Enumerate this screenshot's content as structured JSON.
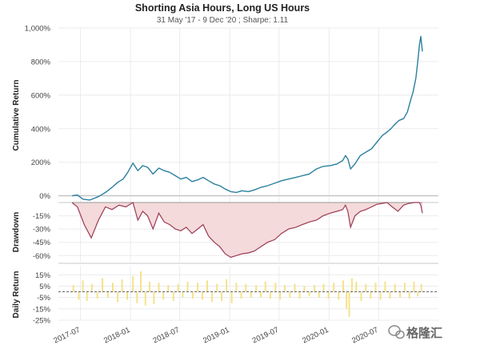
{
  "chart_data": [
    {
      "type": "line",
      "panel": "cumulative",
      "title": "Shorting Asia Hours, Long US Hours",
      "subtitle": "31 May '17 -  9 Dec '20 ;  Sharpe: 1.11",
      "ylabel": "Cumulative Return",
      "ylim": [
        -40,
        1000
      ],
      "yticks": [
        "0%",
        "200%",
        "400%",
        "600%",
        "800%",
        "1,000%"
      ],
      "ytick_values": [
        0,
        200,
        400,
        600,
        800,
        1000
      ],
      "x_start": "2017-05-31",
      "x_end": "2020-12-09",
      "series": [
        {
          "color": "#2a7f9e",
          "x": [
            "2017-05-31",
            "2017-06-20",
            "2017-07-10",
            "2017-08-05",
            "2017-09-05",
            "2017-10-01",
            "2017-10-25",
            "2017-11-15",
            "2017-12-05",
            "2017-12-22",
            "2018-01-10",
            "2018-01-28",
            "2018-02-15",
            "2018-03-05",
            "2018-03-25",
            "2018-04-15",
            "2018-05-05",
            "2018-05-25",
            "2018-06-15",
            "2018-07-05",
            "2018-07-25",
            "2018-08-15",
            "2018-09-05",
            "2018-09-25",
            "2018-10-15",
            "2018-11-05",
            "2018-11-25",
            "2018-12-15",
            "2019-01-05",
            "2019-01-25",
            "2019-02-15",
            "2019-03-10",
            "2019-04-01",
            "2019-04-25",
            "2019-05-20",
            "2019-06-15",
            "2019-07-10",
            "2019-08-05",
            "2019-09-01",
            "2019-09-25",
            "2019-10-20",
            "2019-11-15",
            "2019-12-10",
            "2020-01-05",
            "2020-01-30",
            "2020-02-20",
            "2020-03-01",
            "2020-03-10",
            "2020-03-20",
            "2020-04-05",
            "2020-04-25",
            "2020-05-15",
            "2020-06-05",
            "2020-06-25",
            "2020-07-15",
            "2020-08-01",
            "2020-08-15",
            "2020-09-01",
            "2020-09-15",
            "2020-10-01",
            "2020-10-15",
            "2020-10-25",
            "2020-11-05",
            "2020-11-15",
            "2020-11-22",
            "2020-11-28",
            "2020-12-03",
            "2020-12-09"
          ],
          "values": [
            0,
            5,
            -20,
            -25,
            -5,
            20,
            50,
            80,
            100,
            140,
            195,
            150,
            180,
            170,
            130,
            165,
            150,
            140,
            120,
            100,
            110,
            85,
            95,
            110,
            90,
            70,
            60,
            40,
            25,
            20,
            30,
            25,
            35,
            50,
            60,
            75,
            90,
            100,
            110,
            120,
            130,
            160,
            175,
            180,
            190,
            210,
            240,
            220,
            160,
            190,
            240,
            260,
            280,
            320,
            360,
            380,
            400,
            430,
            450,
            460,
            500,
            560,
            620,
            700,
            800,
            900,
            950,
            860
          ]
        }
      ]
    },
    {
      "type": "area",
      "panel": "drawdown",
      "ylabel": "Drawdown",
      "ylim": [
        -67,
        0
      ],
      "yticks": [
        "-15%",
        "-30%",
        "-45%",
        "-60%"
      ],
      "ytick_values": [
        -15,
        -30,
        -45,
        -60
      ],
      "series": [
        {
          "line_color": "#9b3a55",
          "fill_color": "#f4dada",
          "x": [
            "2017-05-31",
            "2017-06-20",
            "2017-07-15",
            "2017-08-10",
            "2017-09-05",
            "2017-10-01",
            "2017-10-25",
            "2017-11-20",
            "2017-12-15",
            "2018-01-10",
            "2018-01-28",
            "2018-02-15",
            "2018-03-05",
            "2018-03-25",
            "2018-04-15",
            "2018-05-05",
            "2018-05-25",
            "2018-06-15",
            "2018-07-05",
            "2018-07-25",
            "2018-08-15",
            "2018-09-05",
            "2018-09-25",
            "2018-10-15",
            "2018-11-05",
            "2018-11-25",
            "2018-12-15",
            "2019-01-05",
            "2019-01-25",
            "2019-02-15",
            "2019-03-10",
            "2019-04-01",
            "2019-04-25",
            "2019-05-20",
            "2019-06-15",
            "2019-07-10",
            "2019-08-05",
            "2019-09-01",
            "2019-09-25",
            "2019-10-20",
            "2019-11-15",
            "2019-12-10",
            "2020-01-05",
            "2020-01-30",
            "2020-02-20",
            "2020-03-01",
            "2020-03-10",
            "2020-03-20",
            "2020-04-05",
            "2020-04-25",
            "2020-05-15",
            "2020-06-05",
            "2020-06-25",
            "2020-07-15",
            "2020-08-01",
            "2020-08-20",
            "2020-09-10",
            "2020-10-01",
            "2020-10-20",
            "2020-11-10",
            "2020-11-28",
            "2020-12-03",
            "2020-12-09"
          ],
          "values": [
            0,
            -5,
            -25,
            -40,
            -20,
            -5,
            -8,
            -3,
            -5,
            0,
            -20,
            -10,
            -15,
            -30,
            -12,
            -22,
            -25,
            -30,
            -32,
            -28,
            -35,
            -30,
            -25,
            -38,
            -45,
            -50,
            -58,
            -62,
            -60,
            -58,
            -57,
            -55,
            -50,
            -45,
            -42,
            -35,
            -30,
            -28,
            -25,
            -22,
            -20,
            -15,
            -12,
            -10,
            -8,
            -3,
            -10,
            -28,
            -15,
            -10,
            -8,
            -5,
            -2,
            -1,
            0,
            -5,
            -10,
            -3,
            -1,
            0,
            0,
            -3,
            -12
          ]
        }
      ]
    },
    {
      "type": "bar",
      "panel": "daily",
      "ylabel": "Daily Return",
      "ylim": [
        -25,
        23
      ],
      "yticks": [
        "15%",
        "5%",
        "-5%",
        "-15%",
        "-25%"
      ],
      "ytick_values": [
        15,
        5,
        -5,
        -15,
        -25
      ],
      "bar_color": "#f5e28a",
      "mean_line": 0,
      "series": [
        {
          "x": [
            "2017-06-05",
            "2017-06-25",
            "2017-07-10",
            "2017-07-25",
            "2017-08-12",
            "2017-09-01",
            "2017-09-20",
            "2017-10-10",
            "2017-10-28",
            "2017-11-15",
            "2017-12-01",
            "2017-12-20",
            "2018-01-10",
            "2018-01-25",
            "2018-02-08",
            "2018-02-25",
            "2018-03-12",
            "2018-03-28",
            "2018-04-15",
            "2018-05-02",
            "2018-05-20",
            "2018-06-08",
            "2018-06-25",
            "2018-07-12",
            "2018-07-30",
            "2018-08-18",
            "2018-09-05",
            "2018-09-22",
            "2018-10-10",
            "2018-10-28",
            "2018-11-15",
            "2018-12-02",
            "2018-12-20",
            "2019-01-08",
            "2019-01-25",
            "2019-02-12",
            "2019-03-01",
            "2019-03-20",
            "2019-04-08",
            "2019-04-25",
            "2019-05-12",
            "2019-05-30",
            "2019-06-18",
            "2019-07-05",
            "2019-07-22",
            "2019-08-10",
            "2019-08-28",
            "2019-09-15",
            "2019-10-02",
            "2019-10-20",
            "2019-11-08",
            "2019-11-25",
            "2019-12-12",
            "2019-12-30",
            "2020-01-18",
            "2020-02-05",
            "2020-02-22",
            "2020-03-05",
            "2020-03-15",
            "2020-03-25",
            "2020-04-10",
            "2020-04-28",
            "2020-05-15",
            "2020-06-02",
            "2020-06-20",
            "2020-07-08",
            "2020-07-25",
            "2020-08-12",
            "2020-08-30",
            "2020-09-18",
            "2020-10-05",
            "2020-10-22",
            "2020-11-08",
            "2020-11-22",
            "2020-12-05"
          ],
          "values": [
            6,
            -7,
            10,
            -8,
            7,
            -6,
            12,
            -5,
            8,
            -9,
            11,
            -7,
            14,
            -10,
            18,
            -12,
            9,
            -11,
            8,
            -7,
            6,
            -8,
            7,
            -5,
            9,
            -6,
            8,
            -7,
            10,
            -9,
            7,
            -8,
            11,
            -10,
            8,
            -6,
            7,
            -5,
            6,
            -5,
            9,
            -6,
            8,
            -7,
            6,
            -5,
            7,
            -6,
            5,
            -4,
            6,
            -5,
            7,
            -6,
            8,
            -7,
            10,
            -15,
            -22,
            12,
            9,
            -8,
            7,
            -6,
            8,
            -7,
            9,
            -6,
            7,
            -5,
            8,
            -6,
            9,
            -4,
            7
          ]
        }
      ]
    }
  ],
  "x_axis": {
    "ticks": [
      "2017-07",
      "2018-01",
      "2018-07",
      "2019-01",
      "2019-07",
      "2020-01",
      "2020-07"
    ],
    "tick_dates": [
      "2017-07-01",
      "2018-01-01",
      "2018-07-01",
      "2019-01-01",
      "2019-07-01",
      "2020-01-01",
      "2020-07-01"
    ]
  },
  "watermark": {
    "text": "格隆汇",
    "icon": "wechat-icon"
  },
  "colors": {
    "grid": "#ebebeb",
    "axis_text": "#444444"
  }
}
